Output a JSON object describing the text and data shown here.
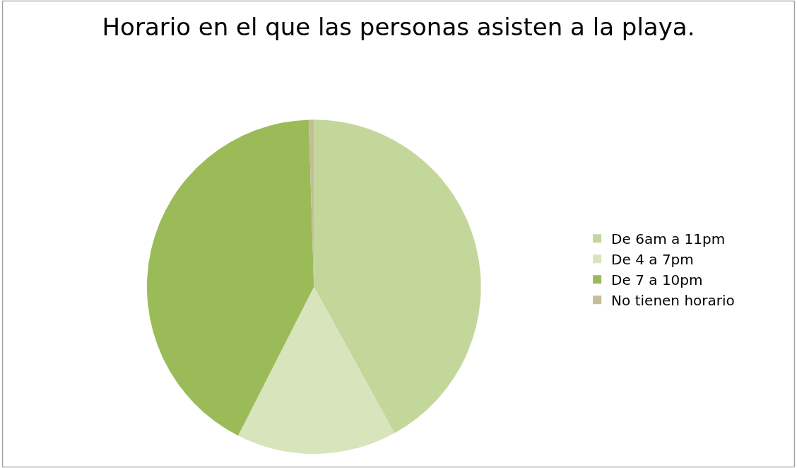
{
  "chart_data": {
    "type": "pie",
    "title": "Horario en el que las personas asisten a la playa.",
    "categories": [
      "De 6am a 11pm",
      "De 4 a 7pm",
      "De 7 a 10pm",
      "No tienen horario"
    ],
    "values": [
      42,
      15.5,
      42,
      0.5
    ],
    "colors": [
      "#c4d79b",
      "#d8e4bc",
      "#9bbb59",
      "#c4bd97"
    ],
    "legend": "right"
  }
}
